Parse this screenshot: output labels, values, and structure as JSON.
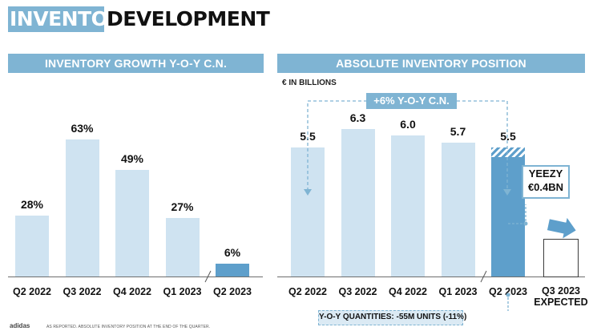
{
  "title": {
    "highlight": "INVENTORY",
    "rest": "DEVELOPMENT"
  },
  "chart_data": [
    {
      "type": "bar",
      "title": "INVENTORY GROWTH Y-O-Y C.N.",
      "categories": [
        "Q2 2022",
        "Q3 2022",
        "Q4 2022",
        "Q1 2023",
        "Q2 2023"
      ],
      "values": [
        28,
        63,
        49,
        27,
        6
      ],
      "labels": [
        "28%",
        "63%",
        "49%",
        "27%",
        "6%"
      ],
      "ylim": [
        0,
        70
      ],
      "highlight_index": 4
    },
    {
      "type": "bar",
      "title": "ABSOLUTE INVENTORY POSITION",
      "unit_label": "€ IN BILLIONS",
      "categories": [
        "Q2 2022",
        "Q3 2022",
        "Q4 2022",
        "Q1 2023",
        "Q2 2023"
      ],
      "values": [
        5.5,
        6.3,
        6.0,
        5.7,
        5.5
      ],
      "labels": [
        "5.5",
        "6.3",
        "6.0",
        "5.7",
        "5.5"
      ],
      "ylim": [
        0,
        7.0
      ],
      "highlight_index": 4,
      "hatched_top_value": 0.4,
      "expected_category": "Q3 2023 EXPECTED",
      "expected_line1": "Q3 2023",
      "expected_line2": "EXPECTED",
      "annotations": {
        "growth": "+6% Y-O-Y C.N.",
        "yeezy_line1": "YEEZY",
        "yeezy_line2": "€0.4BN",
        "quantities": "Y-O-Y QUANTITIES: -55M UNITS (-11%)"
      }
    }
  ],
  "footer": {
    "brand": "adidas",
    "note": "AS REPORTED. ABSOLUTE INVENTORY POSITION AT THE END OF THE QUARTER."
  },
  "colors": {
    "accent": "#7fb4d3",
    "bar_light": "#cfe3f1",
    "bar_dark": "#5e9fcb"
  }
}
